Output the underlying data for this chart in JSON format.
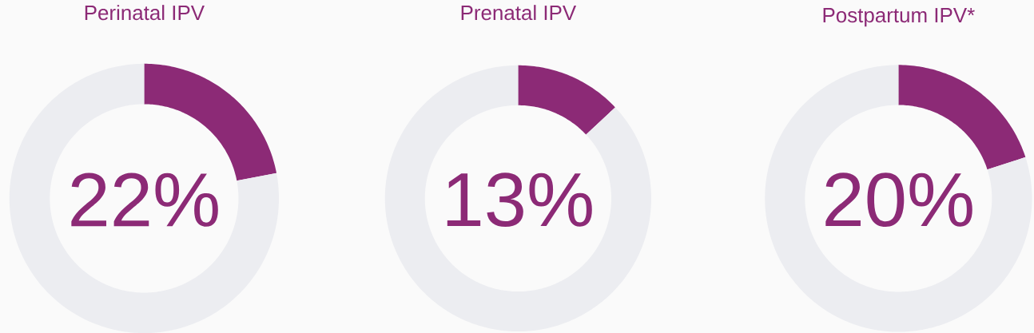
{
  "chart_data": [
    {
      "type": "donut",
      "title": "Perinatal IPV",
      "categories": [
        null,
        null
      ],
      "values": [
        22,
        78
      ],
      "colors": [
        "#8c2a76",
        "#ecedf1"
      ],
      "annotations": [
        "22%"
      ]
    },
    {
      "type": "donut",
      "title": "Prenatal IPV",
      "categories": [
        null,
        null
      ],
      "values": [
        13,
        87
      ],
      "colors": [
        "#8c2a76",
        "#ecedf1"
      ],
      "annotations": [
        "13%"
      ]
    },
    {
      "type": "donut",
      "title": "Postpartum IPV*",
      "categories": [
        null,
        null
      ],
      "values": [
        20,
        80
      ],
      "colors": [
        "#8c2a76",
        "#ecedf1"
      ],
      "annotations": [
        "20%"
      ]
    }
  ]
}
